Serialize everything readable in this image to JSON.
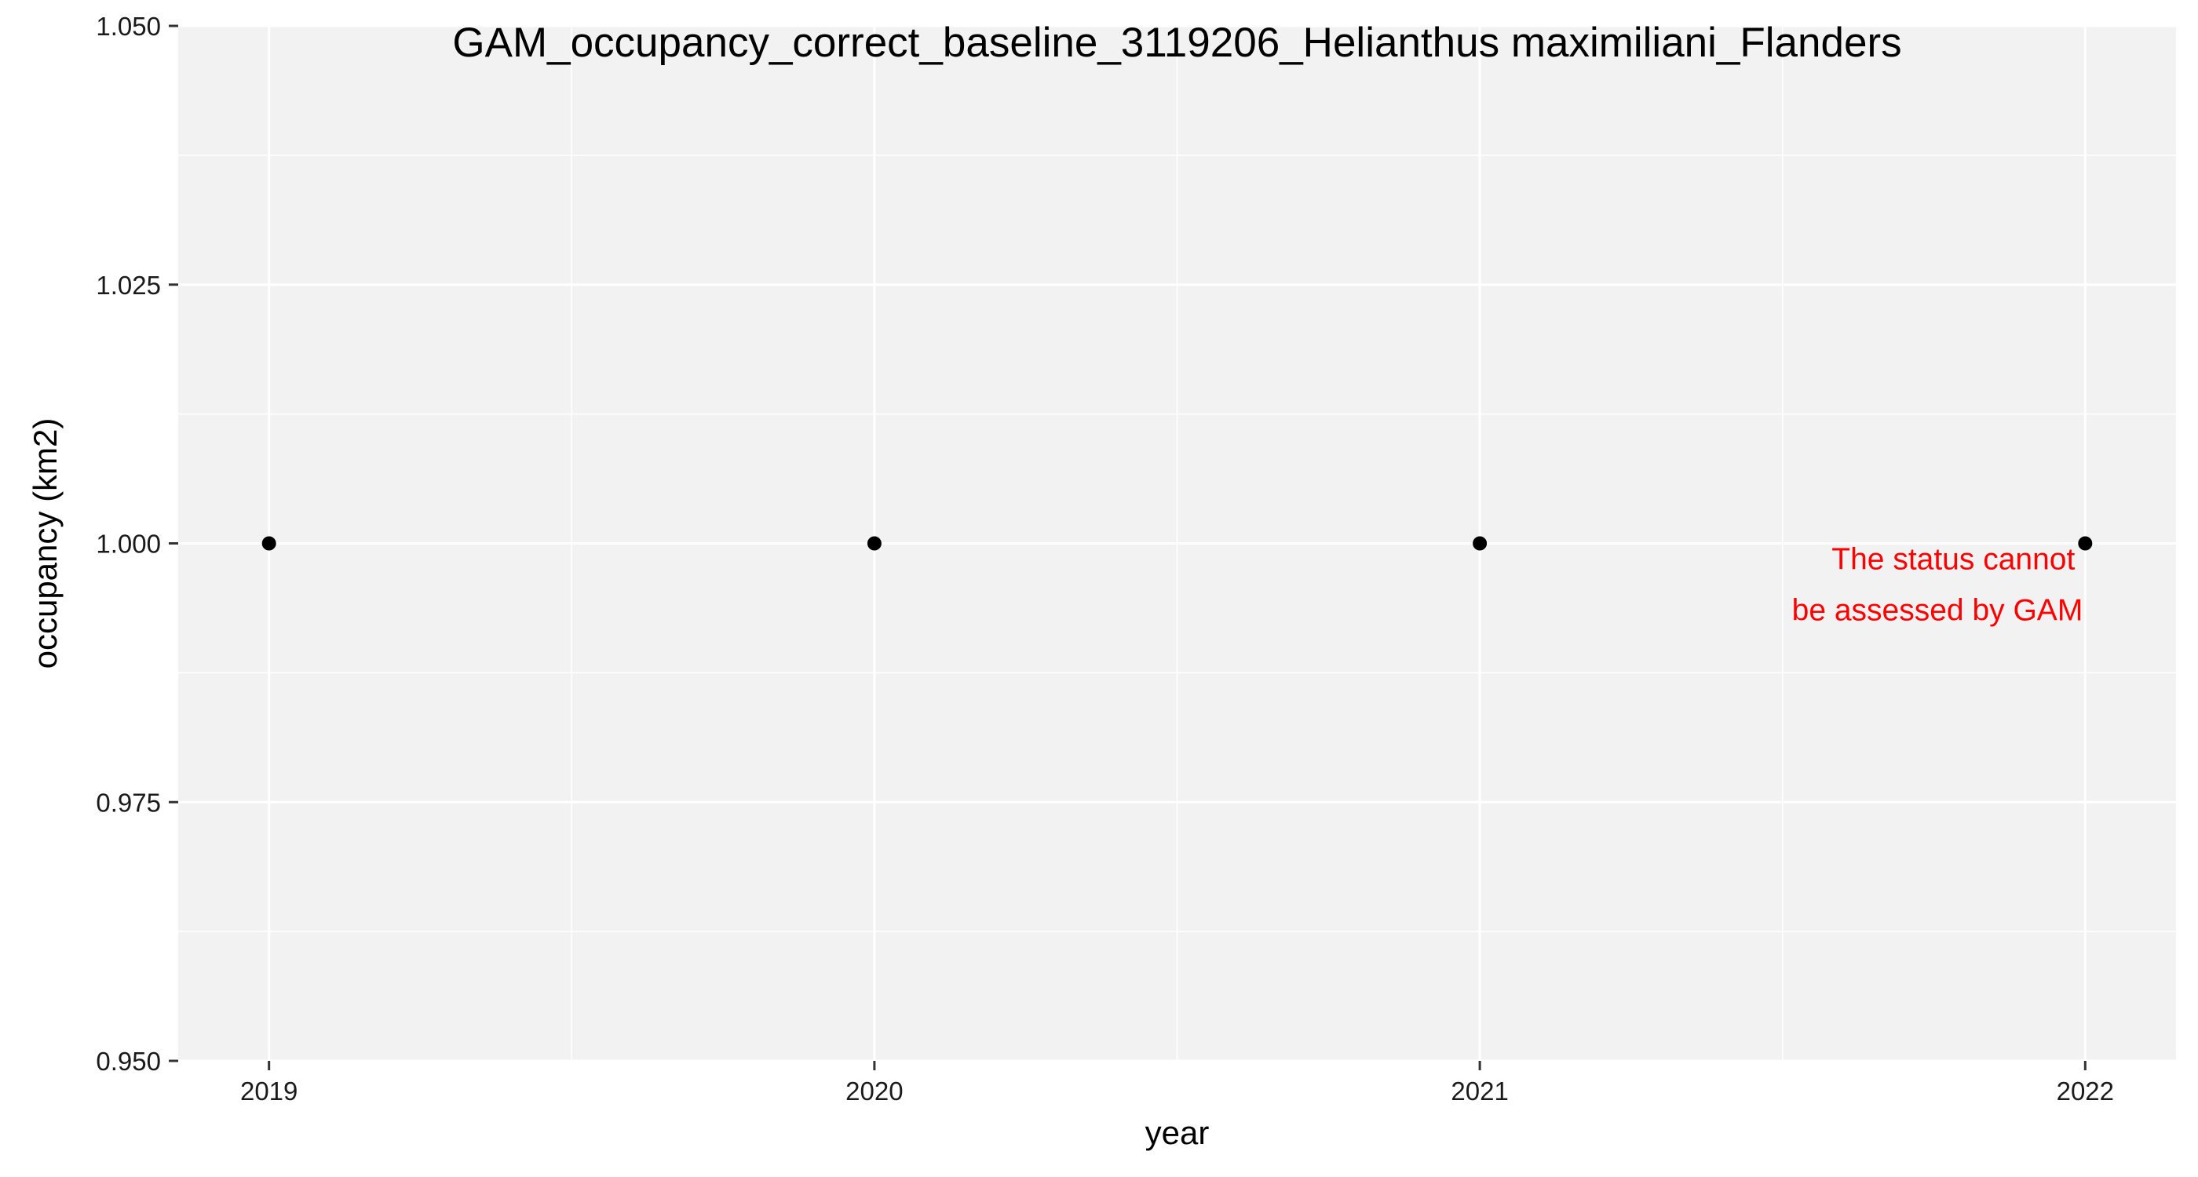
{
  "chart_data": {
    "type": "scatter",
    "title": "GAM_occupancy_correct_baseline_3119206_Helianthus maximiliani_Flanders",
    "xlabel": "year",
    "ylabel": "occupancy (km2)",
    "x": [
      2019,
      2020,
      2021,
      2022
    ],
    "y": [
      1.0,
      1.0,
      1.0,
      1.0
    ],
    "xlim": [
      2018.85,
      2022.15
    ],
    "ylim": [
      0.95,
      1.05
    ],
    "x_ticks": [
      2019,
      2020,
      2021,
      2022
    ],
    "x_tick_labels": [
      "2019",
      "2020",
      "2021",
      "2022"
    ],
    "y_ticks": [
      0.95,
      0.975,
      1.0,
      1.025,
      1.05
    ],
    "y_tick_labels": [
      "0.950",
      "0.975",
      "1.000",
      "1.025",
      "1.050"
    ],
    "grid": true,
    "legend": "none",
    "point_color": "#000000",
    "panel_background": "#f2f2f2",
    "grid_color": "#ffffff",
    "annotation": {
      "lines": [
        "The status cannot",
        "be assessed by GAM"
      ],
      "x": 2022,
      "y": 1.0,
      "color": "#ff0000"
    }
  }
}
